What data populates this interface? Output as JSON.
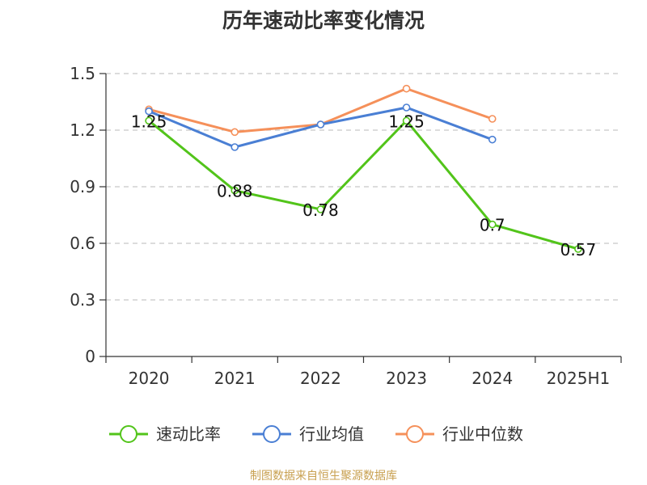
{
  "chart_data": {
    "type": "line",
    "title": "历年速动比率变化情况",
    "categories": [
      "2020",
      "2021",
      "2022",
      "2023",
      "2024",
      "2025H1"
    ],
    "ylim": [
      0,
      1.5
    ],
    "yticks": [
      "0",
      "0.3",
      "0.6",
      "0.9",
      "1.2",
      "1.5"
    ],
    "grid": true,
    "legend_position": "bottom",
    "series": [
      {
        "name": "速动比率",
        "color": "#52c41a",
        "values": [
          1.25,
          0.88,
          0.78,
          1.25,
          0.7,
          0.57
        ],
        "labels": [
          "1.25",
          "0.88",
          "0.78",
          "1.25",
          "0.7",
          "0.57"
        ]
      },
      {
        "name": "行业均值",
        "color": "#4a7fd4",
        "values": [
          1.3,
          1.11,
          1.23,
          1.32,
          1.15,
          null
        ]
      },
      {
        "name": "行业中位数",
        "color": "#f5905a",
        "values": [
          1.31,
          1.19,
          1.23,
          1.42,
          1.26,
          null
        ]
      }
    ]
  },
  "footer": {
    "source": "制图数据来自恒生聚源数据库"
  }
}
